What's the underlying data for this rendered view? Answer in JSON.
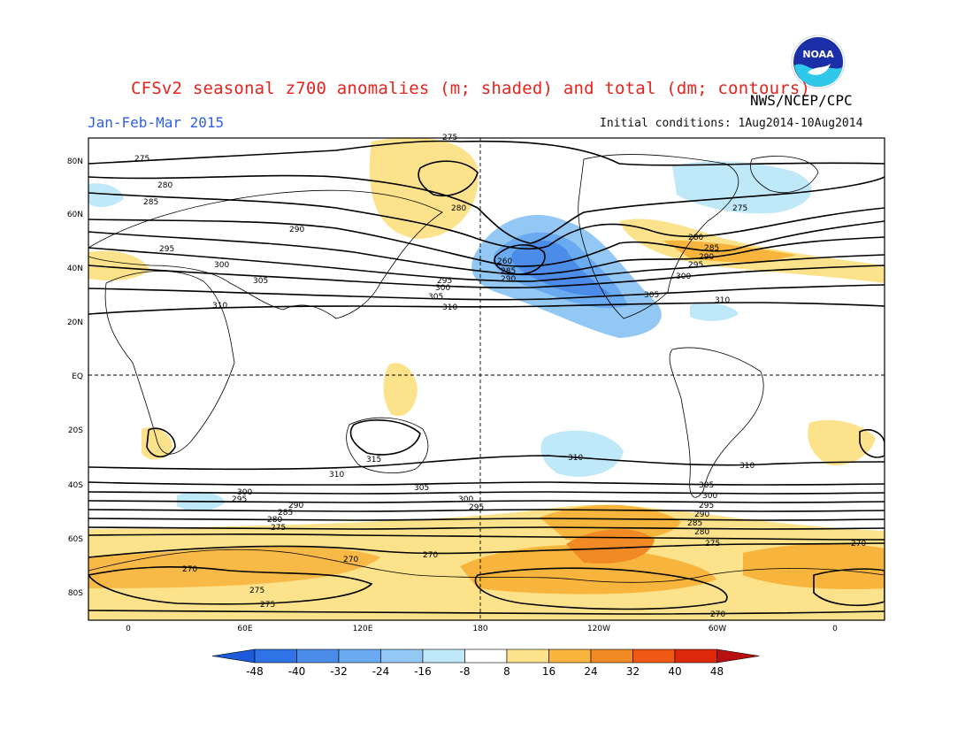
{
  "header": {
    "title": "CFSv2 seasonal z700 anomalies (m; shaded) and total (dm; contours)",
    "agency": "NWS/NCEP/CPC",
    "period": "Jan-Feb-Mar 2015",
    "initial_conditions": "Initial conditions: 1Aug2014-10Aug2014",
    "logo_text": "NOAA"
  },
  "map": {
    "lat_labels": [
      "80N",
      "60N",
      "40N",
      "20N",
      "EQ",
      "20S",
      "40S",
      "60S",
      "80S"
    ],
    "lon_labels": [
      "0",
      "60E",
      "120E",
      "180",
      "120W",
      "60W",
      "0"
    ],
    "contour_labels": [
      "275",
      "280",
      "285",
      "290",
      "295",
      "300",
      "305",
      "310",
      "315",
      "260",
      "270"
    ]
  },
  "colorbar": {
    "labels": [
      "-48",
      "-40",
      "-32",
      "-24",
      "-16",
      "-8",
      "8",
      "16",
      "24",
      "32",
      "40",
      "48"
    ],
    "colors": [
      "#1b5ad8",
      "#2f73e6",
      "#4a8ce8",
      "#6aaaf0",
      "#93c8f5",
      "#bfe8f8",
      "#ffffff",
      "#fce28a",
      "#f8b53e",
      "#f18a24",
      "#ee5a15",
      "#de2a0a",
      "#b81010"
    ]
  }
}
